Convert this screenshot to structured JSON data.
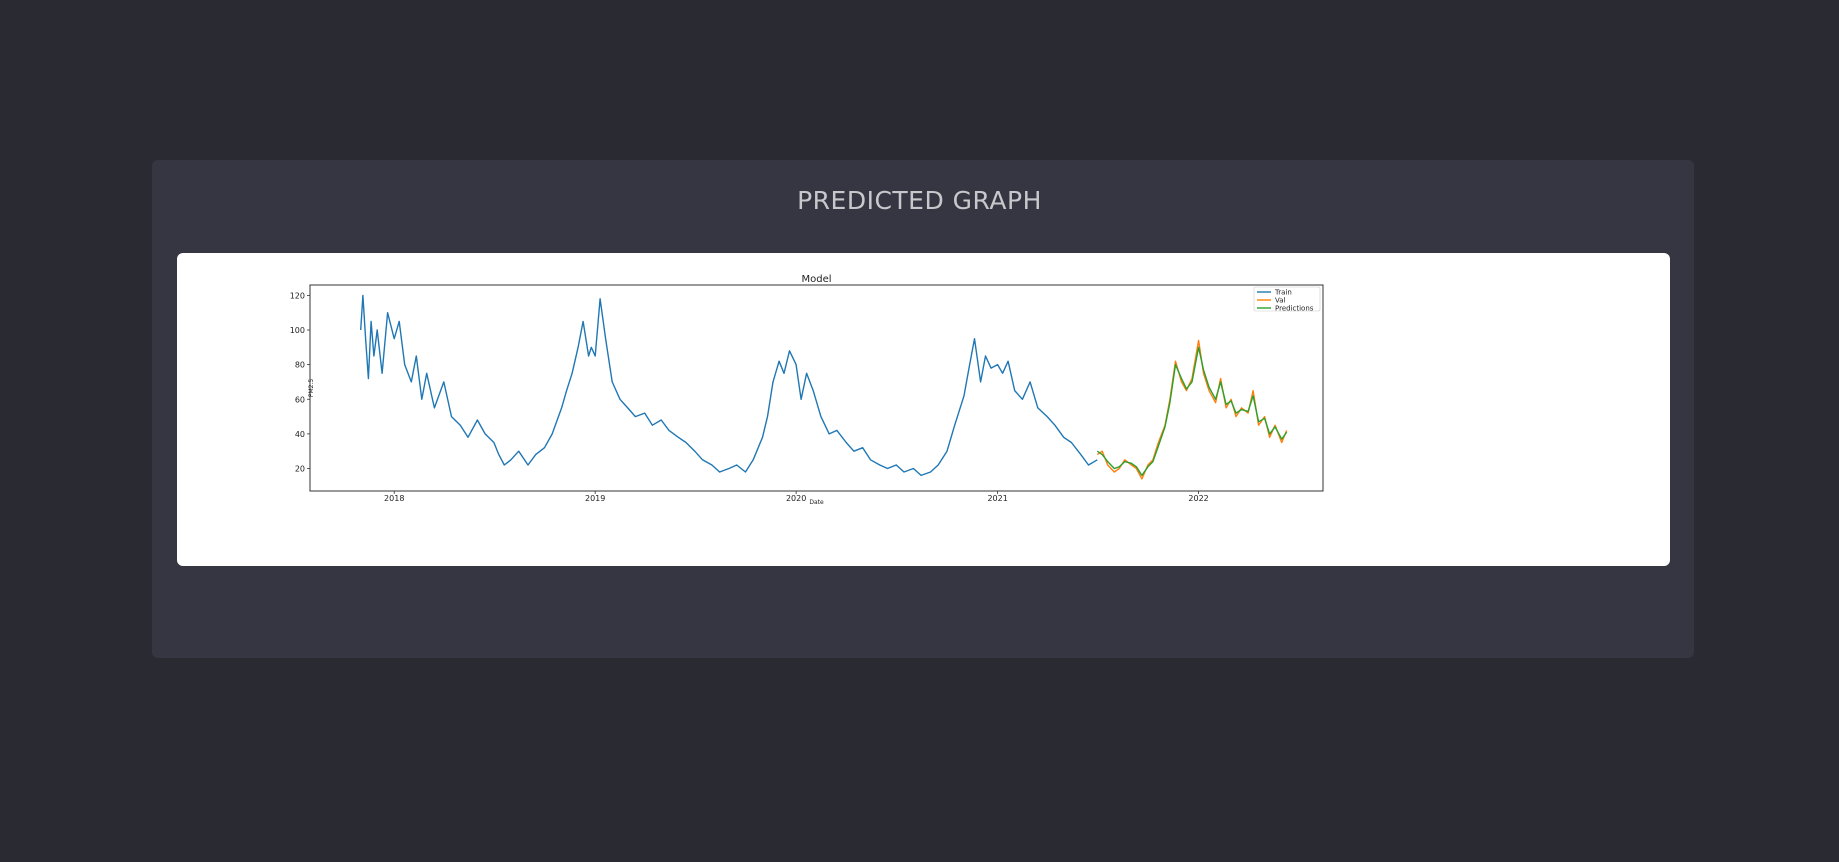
{
  "page": {
    "title": "PREDICTED GRAPH"
  },
  "chart_data": {
    "type": "line",
    "title": "Model",
    "xlabel": "Date",
    "ylabel": "PM2.5",
    "xlim": [
      "2017-08-01",
      "2022-08-15"
    ],
    "ylim": [
      7,
      126
    ],
    "x_ticks": [
      "2018",
      "2019",
      "2020",
      "2021",
      "2022"
    ],
    "y_ticks": [
      20,
      40,
      60,
      80,
      100,
      120
    ],
    "legend": {
      "placement": "top-right"
    },
    "grid": false,
    "colors": {
      "train": "#1f77b4",
      "val": "#ff7f0e",
      "predictions": "#2ca02c"
    },
    "series": [
      {
        "name": "Train",
        "color": "#1f77b4",
        "x": [
          "2017-11-01",
          "2017-11-05",
          "2017-11-10",
          "2017-11-15",
          "2017-11-20",
          "2017-11-25",
          "2017-12-01",
          "2017-12-10",
          "2017-12-20",
          "2018-01-01",
          "2018-01-10",
          "2018-01-20",
          "2018-02-01",
          "2018-02-10",
          "2018-02-20",
          "2018-03-01",
          "2018-03-15",
          "2018-04-01",
          "2018-04-15",
          "2018-05-01",
          "2018-05-15",
          "2018-06-01",
          "2018-06-15",
          "2018-07-01",
          "2018-07-10",
          "2018-07-20",
          "2018-08-01",
          "2018-08-15",
          "2018-09-01",
          "2018-09-15",
          "2018-10-01",
          "2018-10-15",
          "2018-11-01",
          "2018-11-10",
          "2018-11-20",
          "2018-12-01",
          "2018-12-10",
          "2018-12-20",
          "2018-12-25",
          "2019-01-01",
          "2019-01-10",
          "2019-01-20",
          "2019-02-01",
          "2019-02-15",
          "2019-03-01",
          "2019-03-15",
          "2019-04-01",
          "2019-04-15",
          "2019-05-01",
          "2019-05-15",
          "2019-06-01",
          "2019-06-15",
          "2019-07-01",
          "2019-07-15",
          "2019-08-01",
          "2019-08-15",
          "2019-09-01",
          "2019-09-15",
          "2019-10-01",
          "2019-10-15",
          "2019-11-01",
          "2019-11-10",
          "2019-11-20",
          "2019-12-01",
          "2019-12-10",
          "2019-12-20",
          "2020-01-01",
          "2020-01-10",
          "2020-01-20",
          "2020-02-01",
          "2020-02-15",
          "2020-03-01",
          "2020-03-15",
          "2020-04-01",
          "2020-04-15",
          "2020-05-01",
          "2020-05-15",
          "2020-06-01",
          "2020-06-15",
          "2020-07-01",
          "2020-07-15",
          "2020-08-01",
          "2020-08-15",
          "2020-09-01",
          "2020-09-15",
          "2020-10-01",
          "2020-10-15",
          "2020-11-01",
          "2020-11-10",
          "2020-11-20",
          "2020-12-01",
          "2020-12-10",
          "2020-12-20",
          "2021-01-01",
          "2021-01-10",
          "2021-01-20",
          "2021-02-01",
          "2021-02-15",
          "2021-03-01",
          "2021-03-15",
          "2021-04-01",
          "2021-04-15",
          "2021-05-01",
          "2021-05-15",
          "2021-06-01",
          "2021-06-15",
          "2021-07-01"
        ],
        "values": [
          100,
          120,
          95,
          72,
          105,
          85,
          100,
          75,
          110,
          95,
          105,
          80,
          70,
          85,
          60,
          75,
          55,
          70,
          50,
          45,
          38,
          48,
          40,
          35,
          28,
          22,
          25,
          30,
          22,
          28,
          32,
          40,
          55,
          65,
          75,
          90,
          105,
          85,
          90,
          85,
          118,
          95,
          70,
          60,
          55,
          50,
          52,
          45,
          48,
          42,
          38,
          35,
          30,
          25,
          22,
          18,
          20,
          22,
          18,
          25,
          38,
          50,
          70,
          82,
          75,
          88,
          80,
          60,
          75,
          65,
          50,
          40,
          42,
          35,
          30,
          32,
          25,
          22,
          20,
          22,
          18,
          20,
          16,
          18,
          22,
          30,
          45,
          62,
          78,
          95,
          70,
          85,
          78,
          80,
          75,
          82,
          65,
          60,
          70,
          55,
          50,
          45,
          38,
          35,
          28,
          22,
          25
        ]
      },
      {
        "name": "Val",
        "color": "#ff7f0e",
        "x": [
          "2021-07-01",
          "2021-07-10",
          "2021-07-20",
          "2021-08-01",
          "2021-08-10",
          "2021-08-20",
          "2021-09-01",
          "2021-09-10",
          "2021-09-20",
          "2021-10-01",
          "2021-10-10",
          "2021-10-20",
          "2021-11-01",
          "2021-11-10",
          "2021-11-20",
          "2021-12-01",
          "2021-12-10",
          "2021-12-20",
          "2022-01-01",
          "2022-01-10",
          "2022-01-20",
          "2022-02-01",
          "2022-02-10",
          "2022-02-20",
          "2022-03-01",
          "2022-03-10",
          "2022-03-20",
          "2022-04-01",
          "2022-04-10",
          "2022-04-20",
          "2022-05-01",
          "2022-05-10",
          "2022-05-20",
          "2022-06-01",
          "2022-06-10"
        ],
        "values": [
          28,
          30,
          22,
          18,
          20,
          25,
          22,
          20,
          14,
          22,
          25,
          35,
          45,
          60,
          82,
          70,
          65,
          72,
          94,
          75,
          65,
          58,
          72,
          55,
          60,
          50,
          55,
          52,
          65,
          45,
          50,
          38,
          45,
          35,
          42
        ]
      },
      {
        "name": "Predictions",
        "color": "#2ca02c",
        "x": [
          "2021-07-01",
          "2021-07-10",
          "2021-07-20",
          "2021-08-01",
          "2021-08-10",
          "2021-08-20",
          "2021-09-01",
          "2021-09-10",
          "2021-09-20",
          "2021-10-01",
          "2021-10-10",
          "2021-10-20",
          "2021-11-01",
          "2021-11-10",
          "2021-11-20",
          "2021-12-01",
          "2021-12-10",
          "2021-12-20",
          "2022-01-01",
          "2022-01-10",
          "2022-01-20",
          "2022-02-01",
          "2022-02-10",
          "2022-02-20",
          "2022-03-01",
          "2022-03-10",
          "2022-03-20",
          "2022-04-01",
          "2022-04-10",
          "2022-04-20",
          "2022-05-01",
          "2022-05-10",
          "2022-05-20",
          "2022-06-01",
          "2022-06-10"
        ],
        "values": [
          30,
          28,
          24,
          20,
          21,
          24,
          23,
          21,
          16,
          21,
          24,
          33,
          44,
          58,
          80,
          72,
          66,
          70,
          90,
          77,
          67,
          60,
          70,
          57,
          59,
          52,
          54,
          53,
          62,
          47,
          49,
          40,
          44,
          37,
          41
        ]
      }
    ]
  }
}
